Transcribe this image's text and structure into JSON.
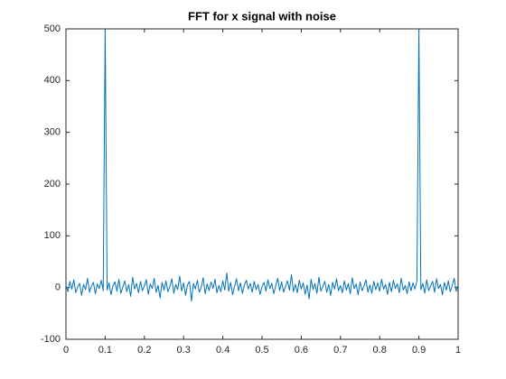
{
  "chart_data": {
    "type": "line",
    "title": "FFT for x signal with noise",
    "color": "#0072bd",
    "xlim": [
      0,
      1
    ],
    "xticks": [
      0,
      0.1,
      0.2,
      0.3,
      0.4,
      0.5,
      0.6,
      0.7,
      0.8,
      0.9,
      1
    ],
    "ylim": [
      -100,
      500
    ],
    "yticks": [
      -100,
      0,
      100,
      200,
      300,
      400,
      500
    ],
    "grid": false,
    "x": [
      0,
      0.005,
      0.01,
      0.015,
      0.02,
      0.025,
      0.03,
      0.035,
      0.04,
      0.045,
      0.05,
      0.055,
      0.06,
      0.065,
      0.07,
      0.075,
      0.08,
      0.085,
      0.09,
      0.095,
      0.1,
      0.105,
      0.11,
      0.115,
      0.12,
      0.125,
      0.13,
      0.135,
      0.14,
      0.145,
      0.15,
      0.155,
      0.16,
      0.165,
      0.17,
      0.175,
      0.18,
      0.185,
      0.19,
      0.195,
      0.2,
      0.205,
      0.21,
      0.215,
      0.22,
      0.225,
      0.23,
      0.235,
      0.24,
      0.245,
      0.25,
      0.255,
      0.26,
      0.265,
      0.27,
      0.275,
      0.28,
      0.285,
      0.29,
      0.295,
      0.3,
      0.305,
      0.31,
      0.315,
      0.32,
      0.325,
      0.33,
      0.335,
      0.34,
      0.345,
      0.35,
      0.355,
      0.36,
      0.365,
      0.37,
      0.375,
      0.38,
      0.385,
      0.39,
      0.395,
      0.4,
      0.405,
      0.41,
      0.415,
      0.42,
      0.425,
      0.43,
      0.435,
      0.44,
      0.445,
      0.45,
      0.455,
      0.46,
      0.465,
      0.47,
      0.475,
      0.48,
      0.485,
      0.49,
      0.495,
      0.5,
      0.505,
      0.51,
      0.515,
      0.52,
      0.525,
      0.53,
      0.535,
      0.54,
      0.545,
      0.55,
      0.555,
      0.56,
      0.565,
      0.57,
      0.575,
      0.58,
      0.585,
      0.59,
      0.595,
      0.6,
      0.605,
      0.61,
      0.615,
      0.62,
      0.625,
      0.63,
      0.635,
      0.64,
      0.645,
      0.65,
      0.655,
      0.66,
      0.665,
      0.67,
      0.675,
      0.68,
      0.685,
      0.69,
      0.695,
      0.7,
      0.705,
      0.71,
      0.715,
      0.72,
      0.725,
      0.73,
      0.735,
      0.74,
      0.745,
      0.75,
      0.755,
      0.76,
      0.765,
      0.77,
      0.775,
      0.78,
      0.785,
      0.79,
      0.795,
      0.8,
      0.805,
      0.81,
      0.815,
      0.82,
      0.825,
      0.83,
      0.835,
      0.84,
      0.845,
      0.85,
      0.855,
      0.86,
      0.865,
      0.87,
      0.875,
      0.88,
      0.885,
      0.89,
      0.895,
      0.9,
      0.905,
      0.91,
      0.915,
      0.92,
      0.925,
      0.93,
      0.935,
      0.94,
      0.945,
      0.95,
      0.955,
      0.96,
      0.965,
      0.97,
      0.975,
      0.98,
      0.985,
      0.99,
      0.995,
      1
    ],
    "values": [
      5,
      -8,
      12,
      -3,
      15,
      -10,
      2,
      8,
      -15,
      6,
      -4,
      18,
      -9,
      3,
      10,
      -12,
      7,
      -2,
      14,
      -6,
      500,
      -5,
      9,
      -14,
      4,
      11,
      -7,
      16,
      -11,
      1,
      13,
      -8,
      6,
      -17,
      20,
      -3,
      8,
      -10,
      12,
      -6,
      3,
      15,
      -13,
      7,
      -2,
      18,
      -9,
      4,
      -20,
      10,
      -5,
      13,
      -8,
      2,
      17,
      -11,
      6,
      -4,
      22,
      -7,
      9,
      -15,
      5,
      12,
      -26,
      8,
      -3,
      14,
      -9,
      1,
      19,
      -12,
      7,
      -6,
      11,
      -2,
      16,
      -10,
      4,
      -8,
      13,
      -5,
      28,
      -7,
      10,
      -14,
      3,
      17,
      -6,
      9,
      -11,
      5,
      14,
      -3,
      8,
      -9,
      12,
      -4,
      6,
      -13,
      2,
      10,
      -7,
      15,
      -2,
      8,
      -12,
      4,
      18,
      -6,
      11,
      -9,
      3,
      13,
      -5,
      25,
      -8,
      6,
      -10,
      14,
      -3,
      9,
      -13,
      5,
      -22,
      16,
      -4,
      8,
      -11,
      20,
      -7,
      2,
      12,
      -9,
      6,
      -15,
      10,
      -3,
      17,
      -6,
      4,
      -10,
      13,
      -5,
      8,
      -12,
      19,
      -2,
      7,
      -14,
      11,
      -6,
      3,
      15,
      -9,
      5,
      -11,
      12,
      -4,
      9,
      -7,
      16,
      -3,
      6,
      -13,
      10,
      -8,
      14,
      -2,
      7,
      -10,
      18,
      -5,
      4,
      -12,
      11,
      -6,
      9,
      -3,
      13,
      500,
      -4,
      8,
      -11,
      15,
      -6,
      3,
      12,
      -9,
      17,
      -2,
      6,
      -14,
      10,
      -5,
      13,
      -8,
      4,
      18,
      -7,
      5
    ]
  }
}
